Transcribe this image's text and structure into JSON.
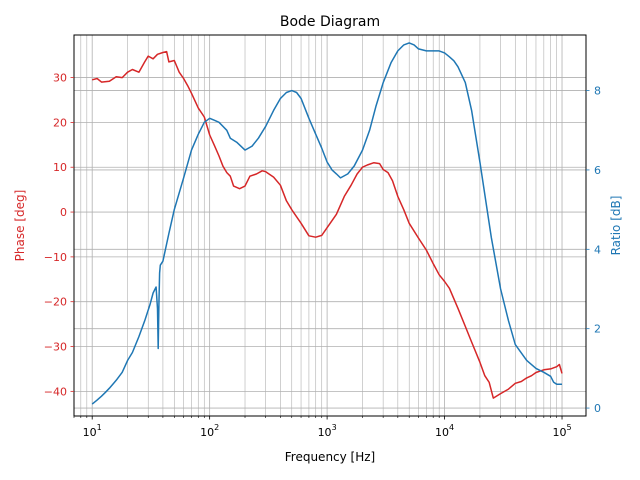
{
  "chart_data": {
    "type": "line",
    "title": "Bode Diagram",
    "xlabel": "Frequency [Hz]",
    "xscale": "log",
    "xlim": [
      7,
      160000
    ],
    "x_tick_labels": [
      {
        "base": "10",
        "exp": "1",
        "value": 10
      },
      {
        "base": "10",
        "exp": "2",
        "value": 100
      },
      {
        "base": "10",
        "exp": "3",
        "value": 1000
      },
      {
        "base": "10",
        "exp": "4",
        "value": 10000
      },
      {
        "base": "10",
        "exp": "5",
        "value": 100000
      }
    ],
    "grid": true,
    "y_left": {
      "label": "Phase [deg]",
      "color": "#d62728",
      "lim": [
        -45.5,
        39.5
      ],
      "ticks": [
        -40,
        -30,
        -20,
        -10,
        0,
        10,
        20,
        30
      ]
    },
    "y_right": {
      "label": "Ratio [dB]",
      "color": "#1f77b4",
      "lim": [
        -0.2,
        9.4
      ],
      "ticks": [
        0,
        2,
        4,
        6,
        8
      ]
    },
    "series": [
      {
        "axis": "left",
        "color": "#d62728",
        "x": [
          10,
          11,
          12,
          14,
          16,
          18,
          20,
          22,
          25,
          28,
          30,
          33,
          36,
          40,
          43,
          45,
          50,
          55,
          60,
          65,
          70,
          80,
          90,
          100,
          110,
          120,
          130,
          140,
          150,
          160,
          180,
          200,
          220,
          250,
          280,
          300,
          350,
          400,
          450,
          500,
          600,
          700,
          800,
          900,
          1000,
          1200,
          1400,
          1600,
          1800,
          2000,
          2200,
          2500,
          2800,
          3000,
          3300,
          3600,
          4000,
          4500,
          5000,
          6000,
          7000,
          8000,
          9000,
          10000,
          11000,
          13000,
          15000,
          17000,
          20000,
          22000,
          24000,
          26000,
          30000,
          35000,
          40000,
          45000,
          50000,
          55000,
          60000,
          70000,
          80000,
          90000,
          95000,
          100000
        ],
        "y": [
          29.5,
          29.8,
          29.0,
          29.2,
          30.2,
          30.0,
          31.2,
          31.8,
          31.2,
          33.5,
          34.8,
          34.2,
          35.2,
          35.6,
          35.8,
          33.5,
          33.8,
          31.2,
          29.8,
          28.2,
          26.5,
          23.2,
          21.2,
          17.2,
          14.8,
          12.5,
          10.2,
          8.8,
          8.0,
          5.8,
          5.2,
          5.8,
          8.0,
          8.5,
          9.2,
          9.0,
          7.8,
          6.0,
          2.5,
          0.5,
          -2.5,
          -5.3,
          -5.6,
          -5.2,
          -3.5,
          -0.5,
          3.5,
          6.0,
          8.5,
          10.0,
          10.5,
          11.0,
          10.8,
          9.5,
          8.8,
          7.0,
          3.5,
          0.5,
          -2.5,
          -5.8,
          -8.5,
          -11.5,
          -14.0,
          -15.5,
          -17.0,
          -21.5,
          -25.5,
          -29.0,
          -33.5,
          -36.5,
          -38.0,
          -41.5,
          -40.5,
          -39.5,
          -38.2,
          -37.8,
          -37.0,
          -36.5,
          -35.8,
          -35.2,
          -35.0,
          -34.5,
          -34.0,
          -36.0
        ]
      },
      {
        "axis": "right",
        "color": "#1f77b4",
        "x": [
          10,
          11,
          12,
          13,
          14,
          16,
          18,
          20,
          22,
          25,
          28,
          31,
          33,
          35,
          36,
          36.5,
          37,
          37.5,
          38,
          40,
          45,
          50,
          60,
          70,
          80,
          90,
          100,
          110,
          120,
          140,
          150,
          170,
          200,
          230,
          260,
          300,
          350,
          400,
          450,
          500,
          550,
          600,
          700,
          800,
          900,
          1000,
          1100,
          1200,
          1300,
          1500,
          1700,
          2000,
          2300,
          2600,
          3000,
          3500,
          4000,
          4500,
          5000,
          5500,
          6000,
          7000,
          8000,
          9000,
          10000,
          11000,
          12000,
          13000,
          15000,
          17000,
          20000,
          25000,
          30000,
          35000,
          40000,
          50000,
          60000,
          70000,
          80000,
          85000,
          90000,
          95000,
          100000
        ],
        "y": [
          0.1,
          0.2,
          0.3,
          0.4,
          0.5,
          0.7,
          0.9,
          1.2,
          1.4,
          1.8,
          2.2,
          2.6,
          2.9,
          3.05,
          2.5,
          1.5,
          2.6,
          3.4,
          3.6,
          3.7,
          4.4,
          5.0,
          5.8,
          6.5,
          6.9,
          7.2,
          7.3,
          7.25,
          7.2,
          7.0,
          6.8,
          6.7,
          6.5,
          6.6,
          6.8,
          7.1,
          7.5,
          7.8,
          7.95,
          8.0,
          7.95,
          7.8,
          7.3,
          6.9,
          6.55,
          6.2,
          6.0,
          5.9,
          5.8,
          5.9,
          6.1,
          6.5,
          7.0,
          7.6,
          8.2,
          8.7,
          9.0,
          9.15,
          9.2,
          9.15,
          9.05,
          9.0,
          9.0,
          9.0,
          8.95,
          8.85,
          8.75,
          8.6,
          8.2,
          7.5,
          6.2,
          4.3,
          3.0,
          2.2,
          1.6,
          1.2,
          1.0,
          0.9,
          0.8,
          0.65,
          0.6,
          0.6,
          0.6
        ]
      }
    ]
  }
}
